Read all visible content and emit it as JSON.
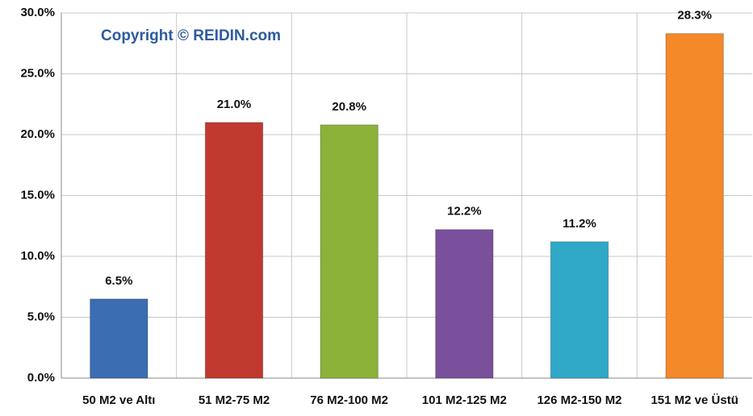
{
  "chart_data": {
    "type": "bar",
    "annotation": "Copyright © REIDIN.com",
    "categories": [
      "50 M2 ve Altı",
      "51 M2-75 M2",
      "76 M2-100 M2",
      "101 M2-125 M2",
      "126 M2-150 M2",
      "151 M2 ve Üstü"
    ],
    "values": [
      6.5,
      21.0,
      20.8,
      12.2,
      11.2,
      28.3
    ],
    "value_labels": [
      "6.5%",
      "21.0%",
      "20.8%",
      "12.2%",
      "11.2%",
      "28.3%"
    ],
    "colors": [
      "#3b6db3",
      "#c0392f",
      "#8cb23a",
      "#7a509c",
      "#30a8c7",
      "#f4892a"
    ],
    "ylim": [
      0,
      30
    ],
    "yticks": [
      {
        "value": 0,
        "label": "0.0%"
      },
      {
        "value": 5,
        "label": "5.0%"
      },
      {
        "value": 10,
        "label": "10.0%"
      },
      {
        "value": 15,
        "label": "15.0%"
      },
      {
        "value": 20,
        "label": "20.0%"
      },
      {
        "value": 25,
        "label": "25.0%"
      },
      {
        "value": 30,
        "label": "30.0%"
      }
    ],
    "grid": true
  }
}
